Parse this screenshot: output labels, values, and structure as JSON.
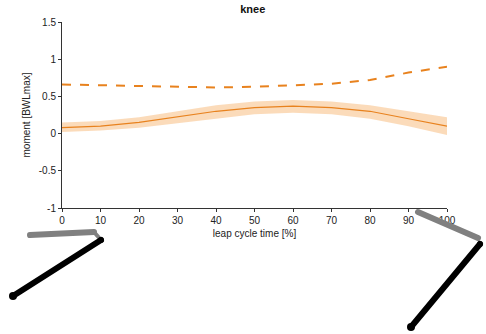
{
  "chart_data": {
    "type": "line",
    "title": "knee",
    "x_label": "leap cycle time [%]",
    "y_label": "moment [BWLmax]",
    "x": [
      0,
      10,
      20,
      30,
      40,
      50,
      60,
      70,
      80,
      90,
      100
    ],
    "series": [
      {
        "color": "#e8821e",
        "line_style": "solid",
        "values": [
          0.08,
          0.1,
          0.15,
          0.22,
          0.3,
          0.35,
          0.37,
          0.35,
          0.3,
          0.2,
          0.1
        ],
        "lower": [
          0.02,
          0.04,
          0.08,
          0.14,
          0.2,
          0.26,
          0.28,
          0.26,
          0.2,
          0.1,
          -0.02
        ],
        "upper": [
          0.15,
          0.17,
          0.22,
          0.3,
          0.38,
          0.43,
          0.45,
          0.43,
          0.38,
          0.3,
          0.22
        ]
      },
      {
        "color": "#e8821e",
        "line_style": "dashed",
        "values": [
          0.66,
          0.65,
          0.63,
          0.62,
          0.62,
          0.63,
          0.65,
          0.67,
          0.72,
          0.82,
          0.9
        ]
      }
    ],
    "xlim": [
      0,
      100
    ],
    "xticks": [
      0,
      10,
      20,
      30,
      40,
      50,
      60,
      70,
      80,
      90,
      100
    ],
    "ylim": [
      -1,
      1.5
    ],
    "yticks": [
      -1,
      -0.5,
      0,
      0.5,
      1,
      1.5
    ],
    "grid": false
  }
}
